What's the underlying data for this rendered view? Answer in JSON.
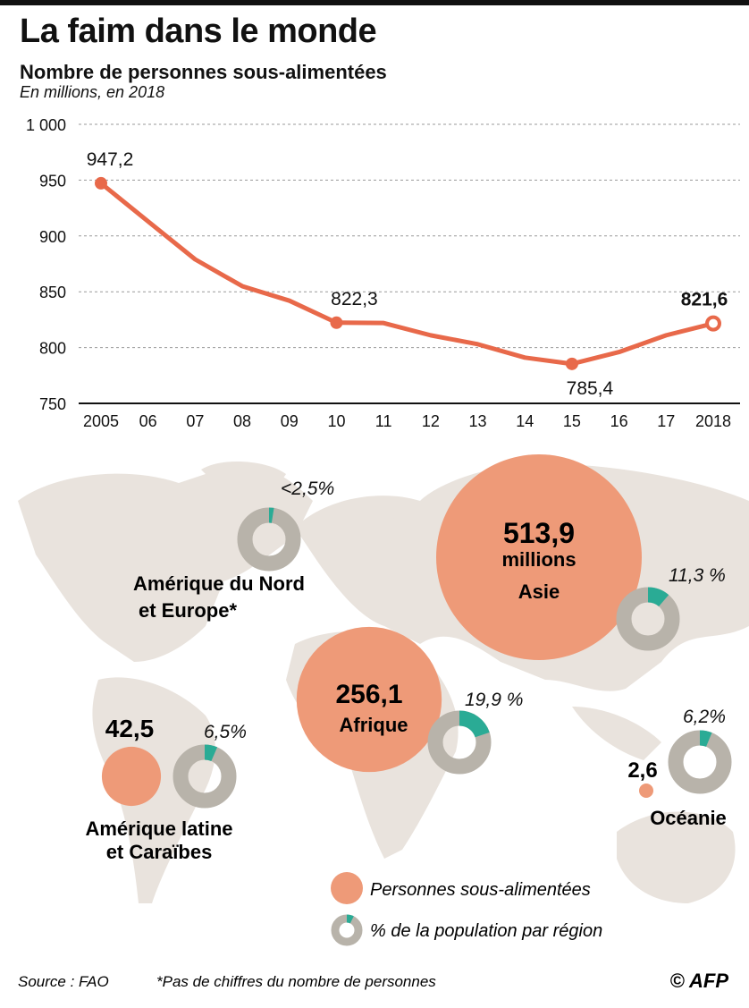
{
  "header": {
    "title": "La faim dans le monde",
    "subtitle": "Nombre de personnes sous-alimentées",
    "unit": "En millions, en 2018"
  },
  "chart_data": [
    {
      "type": "line",
      "categories": [
        "2005",
        "06",
        "07",
        "08",
        "09",
        "10",
        "11",
        "12",
        "13",
        "14",
        "15",
        "16",
        "17",
        "2018"
      ],
      "values": [
        947.2,
        913,
        879,
        855,
        842,
        822.3,
        822,
        811,
        803,
        791,
        785.4,
        796,
        811,
        821.6
      ],
      "data_labels": [
        {
          "index": 0,
          "text": "947,2"
        },
        {
          "index": 5,
          "text": "822,3"
        },
        {
          "index": 10,
          "text": "785,4"
        },
        {
          "index": 13,
          "text": "821,6"
        }
      ],
      "yticks": [
        "1 000",
        "950",
        "900",
        "850",
        "800",
        "750"
      ],
      "ytick_values": [
        1000,
        950,
        900,
        850,
        800,
        750
      ],
      "ylim": [
        750,
        1000
      ],
      "grid": true,
      "color": "#e8694a"
    },
    {
      "type": "bubble-map",
      "regions": [
        {
          "name": "Asie",
          "value": 513.9,
          "value_text": "513,9",
          "unit_text": "millions",
          "pct": 11.3,
          "pct_text": "11,3 %"
        },
        {
          "name": "Afrique",
          "value": 256.1,
          "value_text": "256,1",
          "pct": 19.9,
          "pct_text": "19,9 %"
        },
        {
          "name": "Amérique latine et Caraïbes",
          "line1": "Amérique latine",
          "line2": "et Caraïbes",
          "value": 42.5,
          "value_text": "42,5",
          "pct": 6.5,
          "pct_text": "6,5%"
        },
        {
          "name": "Océanie",
          "value": 2.6,
          "value_text": "2,6",
          "pct": 6.2,
          "pct_text": "6,2%"
        },
        {
          "name": "Amérique du Nord et Europe*",
          "line1": "Amérique du Nord",
          "line2": "et Europe*",
          "pct": 2.5,
          "pct_text": "<2,5%"
        }
      ],
      "legend": {
        "bubble": "Personnes sous-alimentées",
        "donut": "% de la population par région"
      },
      "colors": {
        "bubble": "#ee9a78",
        "donut": "#b8b3aa",
        "donut_fill": "#2aab95",
        "map": "#e9e3dd"
      }
    }
  ],
  "footer": {
    "source": "Source : FAO",
    "note": "*Pas de chiffres du nombre de personnes",
    "credit": "© AFP"
  }
}
